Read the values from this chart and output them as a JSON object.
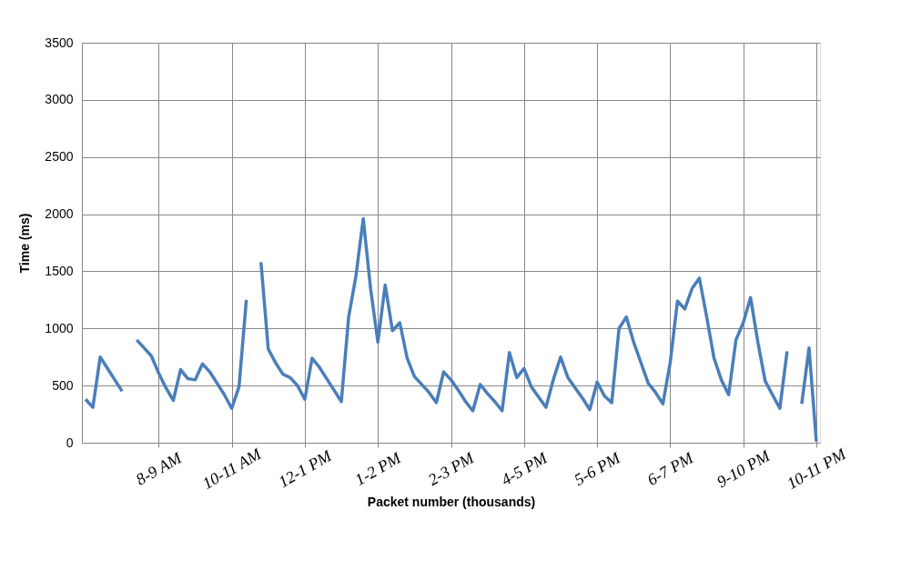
{
  "chart_data": {
    "type": "line",
    "xlabel": "Packet number (thousands)",
    "ylabel": "Time (ms)",
    "categories": [
      null,
      null,
      null,
      null,
      null,
      null,
      null,
      null,
      null,
      null,
      "8-9 AM",
      null,
      null,
      null,
      null,
      null,
      null,
      null,
      null,
      null,
      "10-11 AM",
      null,
      null,
      null,
      null,
      null,
      null,
      null,
      null,
      null,
      "12-1 PM",
      null,
      null,
      null,
      null,
      null,
      null,
      null,
      null,
      null,
      "1-2 PM",
      null,
      null,
      null,
      null,
      null,
      null,
      null,
      null,
      null,
      "2-3 PM",
      null,
      null,
      null,
      null,
      null,
      null,
      null,
      null,
      null,
      "4-5 PM",
      null,
      null,
      null,
      null,
      null,
      null,
      null,
      null,
      null,
      "5-6 PM",
      null,
      null,
      null,
      null,
      null,
      null,
      null,
      null,
      null,
      "6-7 PM",
      null,
      null,
      null,
      null,
      null,
      null,
      null,
      null,
      null,
      "9-10 PM",
      null,
      null,
      null,
      null,
      null,
      null,
      null,
      null,
      null,
      "10-11 PM"
    ],
    "ylim": [
      0,
      3500
    ],
    "yticks": [
      0,
      500,
      1000,
      1500,
      2000,
      2500,
      3000,
      3500
    ],
    "grid": true,
    "legend": false,
    "marker": "none",
    "line_style": "solid",
    "series": [
      {
        "color": "#4a7ebb",
        "values": [
          380,
          310,
          750,
          650,
          550,
          450,
          null,
          900,
          830,
          760,
          610,
          480,
          370,
          640,
          560,
          550,
          690,
          620,
          520,
          420,
          300,
          490,
          1250,
          null,
          1580,
          820,
          700,
          600,
          570,
          500,
          380,
          740,
          660,
          560,
          460,
          360,
          1100,
          1460,
          1960,
          1350,
          880,
          1380,
          980,
          1050,
          740,
          580,
          510,
          440,
          350,
          620,
          550,
          460,
          360,
          280,
          510,
          430,
          360,
          280,
          790,
          570,
          650,
          490,
          400,
          310,
          550,
          750,
          570,
          480,
          390,
          290,
          530,
          410,
          350,
          1000,
          1100,
          880,
          700,
          520,
          440,
          340,
          700,
          1240,
          1170,
          1350,
          1440,
          1100,
          740,
          550,
          420,
          900,
          1050,
          1270,
          880,
          540,
          420,
          300,
          800,
          null,
          340,
          830,
          10
        ]
      }
    ]
  }
}
